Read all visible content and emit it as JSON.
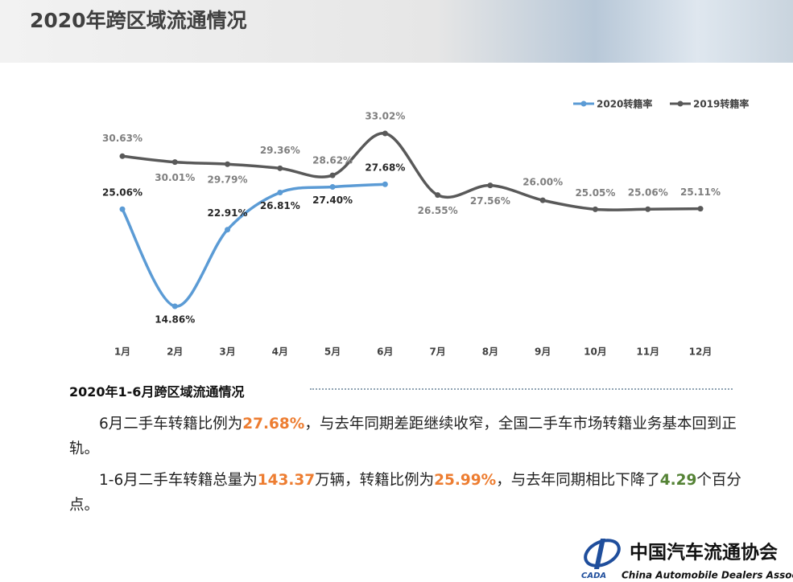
{
  "header": {
    "title": "2020年跨区域流通情况"
  },
  "chart_data": {
    "type": "line",
    "categories": [
      "1月",
      "2月",
      "3月",
      "4月",
      "5月",
      "6月",
      "7月",
      "8月",
      "9月",
      "10月",
      "11月",
      "12月"
    ],
    "series": [
      {
        "name": "2020转籍率",
        "color": "#5b9bd5",
        "values": [
          25.06,
          14.86,
          22.91,
          26.81,
          27.4,
          27.68,
          null,
          null,
          null,
          null,
          null,
          null
        ],
        "value_labels": [
          "25.06%",
          "14.86%",
          "22.91%",
          "26.81%",
          "27.40%",
          "27.68%",
          null,
          null,
          null,
          null,
          null,
          null
        ]
      },
      {
        "name": "2019转籍率",
        "color": "#595959",
        "values": [
          30.63,
          30.01,
          29.79,
          29.36,
          28.62,
          33.02,
          26.55,
          27.56,
          26.0,
          25.05,
          25.06,
          25.11
        ],
        "value_labels": [
          "30.63%",
          "30.01%",
          "29.79%",
          "29.36%",
          "28.62%",
          "33.02%",
          "26.55%",
          "27.56%",
          "26.00%",
          "25.05%",
          "25.06%",
          "25.11%"
        ]
      }
    ],
    "legend": "top-right",
    "smooth": true
  },
  "section": {
    "title": "2020年1-6月跨区域流通情况",
    "paragraphs": [
      [
        {
          "text": "6月二手车转籍比例为"
        },
        {
          "text": "27.68%",
          "color": "#ed7d31"
        },
        {
          "text": "，与去年同期差距继续收窄，全国二手车市场转籍业务基本回到正轨。"
        }
      ],
      [
        {
          "text": "1-6月二手车转籍总量为"
        },
        {
          "text": "143.37",
          "color": "#ed7d31"
        },
        {
          "text": "万辆，转籍比例为"
        },
        {
          "text": "25.99%",
          "color": "#ed7d31"
        },
        {
          "text": "，与去年同期相比下降了"
        },
        {
          "text": "4.29",
          "color": "#548235"
        },
        {
          "text": "个百分点。"
        }
      ]
    ]
  },
  "logo": {
    "mark": "CADA",
    "name": "中国汽车流通协会",
    "english": "China Automobile Dealers Association"
  }
}
